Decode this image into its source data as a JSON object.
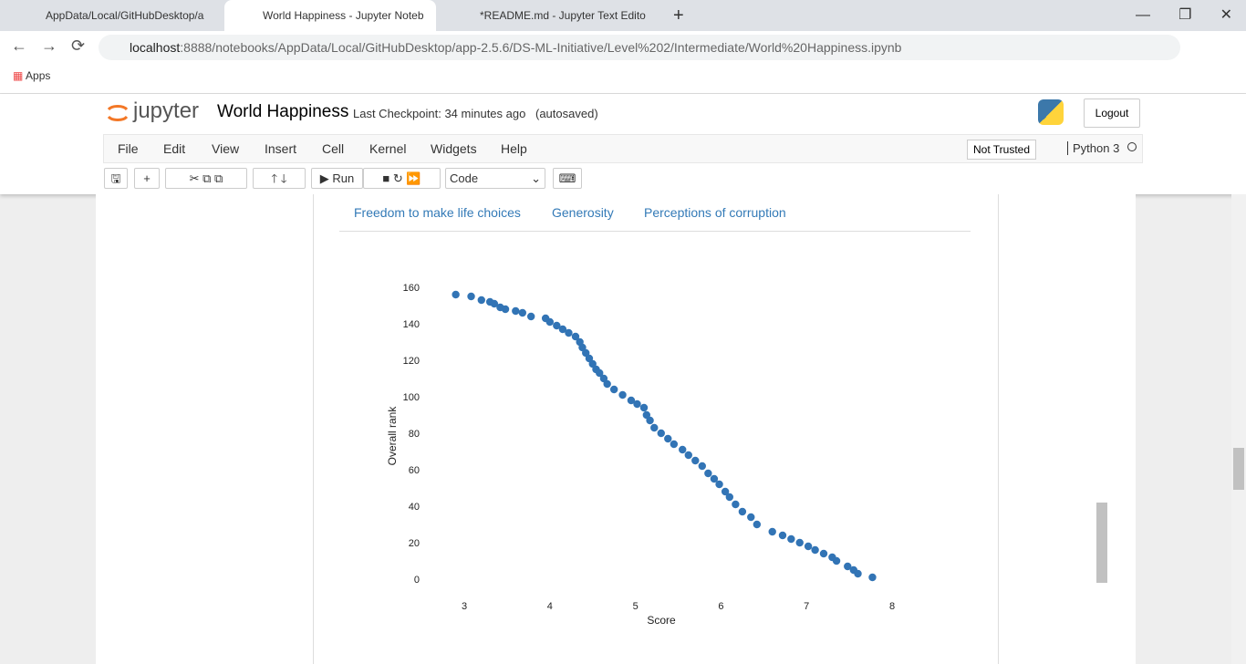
{
  "browser": {
    "tabs": [
      "AppData/Local/GitHubDesktop/a",
      "World Happiness - Jupyter Noteb",
      "*README.md - Jupyter Text Edito"
    ],
    "url_host": "localhost",
    "url_path": ":8888/notebooks/AppData/Local/GitHubDesktop/app-2.5.6/DS-ML-Initiative/Level%202/Intermediate/World%20Happiness.ipynb",
    "bookmark": "Apps"
  },
  "jupyter": {
    "logo": "jupyter",
    "notebook_name": "World Happiness",
    "checkpoint": "Last Checkpoint: 34 minutes ago",
    "autosaved": "(autosaved)",
    "logout": "Logout",
    "menu": [
      "File",
      "Edit",
      "View",
      "Insert",
      "Cell",
      "Kernel",
      "Widgets",
      "Help"
    ],
    "trust": "Not Trusted",
    "kernel": "Python 3",
    "run": "Run",
    "cell_type": "Code"
  },
  "output": {
    "tabs": [
      "Freedom to make life choices",
      "Generosity",
      "Perceptions of corruption"
    ]
  },
  "chart_data": {
    "type": "scatter",
    "x_label": "Score",
    "y_label": "Overall rank",
    "color": "#3274b5",
    "x": [
      2.9,
      3.08,
      3.2,
      3.3,
      3.35,
      3.42,
      3.48,
      3.6,
      3.68,
      3.78,
      3.95,
      4.0,
      4.08,
      4.15,
      4.22,
      4.3,
      4.35,
      4.38,
      4.42,
      4.46,
      4.5,
      4.54,
      4.58,
      4.63,
      4.67,
      4.75,
      4.85,
      4.95,
      5.02,
      5.1,
      5.13,
      5.17,
      5.22,
      5.3,
      5.38,
      5.45,
      5.55,
      5.62,
      5.7,
      5.78,
      5.85,
      5.92,
      5.98,
      6.05,
      6.1,
      6.17,
      6.25,
      6.35,
      6.42,
      6.6,
      6.72,
      6.82,
      6.92,
      7.02,
      7.1,
      7.2,
      7.3,
      7.35,
      7.48,
      7.55,
      7.6,
      7.77
    ],
    "y": [
      156,
      155,
      153,
      152,
      151,
      149,
      148,
      147,
      146,
      144,
      143,
      141,
      139,
      137,
      135,
      133,
      130,
      127,
      124,
      121,
      118,
      115,
      113,
      110,
      107,
      104,
      101,
      98,
      96,
      94,
      90,
      87,
      83,
      80,
      77,
      74,
      71,
      68,
      65,
      62,
      58,
      55,
      52,
      48,
      45,
      41,
      37,
      34,
      30,
      26,
      24,
      22,
      20,
      18,
      16,
      14,
      12,
      10,
      7,
      5,
      3,
      1
    ],
    "xlim": [
      2.6,
      8.2
    ],
    "ylim": [
      -5,
      165
    ],
    "xticks": [
      3,
      4,
      5,
      6,
      7,
      8
    ],
    "yticks": [
      0,
      20,
      40,
      60,
      80,
      100,
      120,
      140,
      160
    ]
  }
}
